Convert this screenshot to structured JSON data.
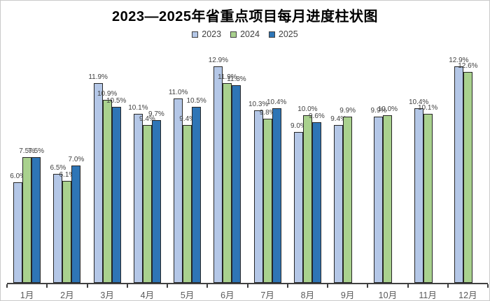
{
  "chart_data": {
    "type": "bar",
    "title": "2023—2025年省重点项目每月进度柱状图",
    "categories": [
      "1月",
      "2月",
      "3月",
      "4月",
      "5月",
      "6月",
      "7月",
      "8月",
      "9月",
      "10月",
      "11月",
      "12月"
    ],
    "series": [
      {
        "name": "2023",
        "color": "#b4c7e7",
        "values": [
          6.0,
          6.5,
          11.9,
          10.1,
          11.0,
          12.9,
          10.3,
          9.0,
          9.4,
          9.9,
          10.4,
          12.9
        ]
      },
      {
        "name": "2024",
        "color": "#a9d18e",
        "values": [
          7.5,
          6.1,
          10.9,
          9.4,
          9.4,
          11.9,
          9.8,
          10.0,
          9.9,
          10.0,
          10.1,
          12.6
        ]
      },
      {
        "name": "2025",
        "color": "#2e75b6",
        "values": [
          7.5,
          7.0,
          10.5,
          9.7,
          10.5,
          11.8,
          10.4,
          9.6,
          null,
          null,
          null,
          null
        ]
      }
    ],
    "value_suffix": "%",
    "data_labels": true,
    "grid": false,
    "y_axis_visible": false,
    "ylim": [
      0,
      13.5
    ],
    "legend_position": "top",
    "colors": {
      "axis": "#404040",
      "value_label": "#404040",
      "category_label": "#595959",
      "bar_border": "#262626",
      "title": "#000000"
    }
  }
}
